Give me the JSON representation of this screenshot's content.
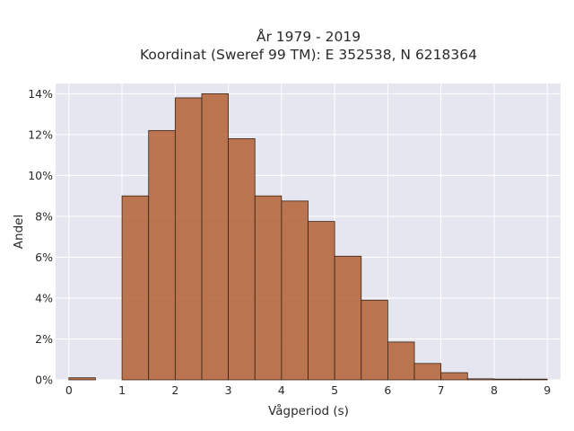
{
  "chart_data": {
    "type": "bar",
    "title_lines": [
      "År 1979 - 2019",
      "Koordinat (Sweref 99 TM): E 352538, N 6218364"
    ],
    "xlabel": "Vågperiod (s)",
    "ylabel": "Andel",
    "x_ticks": [
      "0",
      "1",
      "2",
      "3",
      "4",
      "5",
      "6",
      "7",
      "8",
      "9"
    ],
    "y_ticks": [
      "0%",
      "2%",
      "4%",
      "6%",
      "8%",
      "10%",
      "12%",
      "14%"
    ],
    "xlim": [
      -0.25,
      9.25
    ],
    "ylim": [
      0,
      14.5
    ],
    "grid": true,
    "bin_width": 0.5,
    "bins": [
      {
        "x0": 0.0,
        "x1": 0.5,
        "value": 0.1
      },
      {
        "x0": 0.5,
        "x1": 1.0,
        "value": 0.0
      },
      {
        "x0": 1.0,
        "x1": 1.5,
        "value": 9.0
      },
      {
        "x0": 1.5,
        "x1": 2.0,
        "value": 12.2
      },
      {
        "x0": 2.0,
        "x1": 2.5,
        "value": 13.8
      },
      {
        "x0": 2.5,
        "x1": 3.0,
        "value": 14.0
      },
      {
        "x0": 3.0,
        "x1": 3.5,
        "value": 11.8
      },
      {
        "x0": 3.5,
        "x1": 4.0,
        "value": 9.0
      },
      {
        "x0": 4.0,
        "x1": 4.5,
        "value": 8.75
      },
      {
        "x0": 4.5,
        "x1": 5.0,
        "value": 7.75
      },
      {
        "x0": 5.0,
        "x1": 5.5,
        "value": 6.05
      },
      {
        "x0": 5.5,
        "x1": 6.0,
        "value": 3.9
      },
      {
        "x0": 6.0,
        "x1": 6.5,
        "value": 1.85
      },
      {
        "x0": 6.5,
        "x1": 7.0,
        "value": 0.8
      },
      {
        "x0": 7.0,
        "x1": 7.5,
        "value": 0.35
      },
      {
        "x0": 7.5,
        "x1": 8.0,
        "value": 0.05
      },
      {
        "x0": 8.0,
        "x1": 8.5,
        "value": 0.02
      },
      {
        "x0": 8.5,
        "x1": 9.0,
        "value": 0.01
      }
    ],
    "colors": {
      "plot_background": "#e5e6ef",
      "bar_fill": "#b5643a",
      "bar_edge": "#3a2416"
    }
  }
}
